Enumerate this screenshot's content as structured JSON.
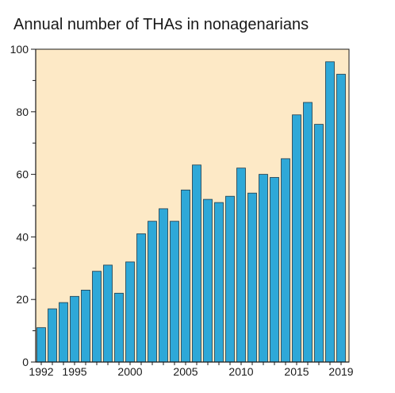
{
  "chart_data": {
    "type": "bar",
    "title": "Annual number of THAs in nonagenarians",
    "xlabel": "",
    "ylabel": "",
    "categories": [
      "1992",
      "1993",
      "1994",
      "1995",
      "1996",
      "1997",
      "1998",
      "1999",
      "2000",
      "2001",
      "2002",
      "2003",
      "2004",
      "2005",
      "2006",
      "2007",
      "2008",
      "2009",
      "2010",
      "2011",
      "2012",
      "2013",
      "2014",
      "2015",
      "2016",
      "2017",
      "2018",
      "2019"
    ],
    "values": [
      11,
      17,
      19,
      21,
      23,
      29,
      31,
      22,
      32,
      41,
      45,
      49,
      45,
      55,
      63,
      52,
      51,
      53,
      62,
      54,
      60,
      59,
      65,
      79,
      83,
      76,
      96,
      92
    ],
    "ylim": [
      0,
      100
    ],
    "yticks": [
      "0",
      "20",
      "40",
      "60",
      "80",
      "100"
    ],
    "xticks": [
      "1992",
      "1995",
      "2000",
      "2005",
      "2010",
      "2015",
      "2019"
    ],
    "grid": false,
    "legend": "none",
    "colors": {
      "bar_fill": "#2ea8d8",
      "bar_stroke": "#1f3a4a",
      "plot_background": "#fde9c6",
      "axis": "#1a1a1a"
    }
  }
}
